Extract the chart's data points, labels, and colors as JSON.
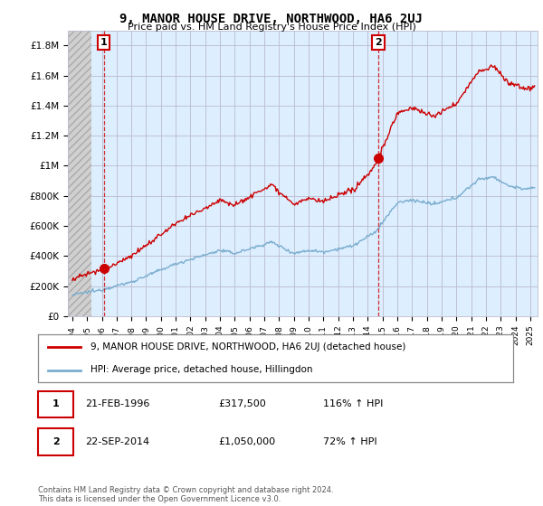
{
  "title": "9, MANOR HOUSE DRIVE, NORTHWOOD, HA6 2UJ",
  "subtitle": "Price paid vs. HM Land Registry's House Price Index (HPI)",
  "ylabel_ticks": [
    "£0",
    "£200K",
    "£400K",
    "£600K",
    "£800K",
    "£1M",
    "£1.2M",
    "£1.4M",
    "£1.6M",
    "£1.8M"
  ],
  "ytick_values": [
    0,
    200000,
    400000,
    600000,
    800000,
    1000000,
    1200000,
    1400000,
    1600000,
    1800000
  ],
  "ylim": [
    0,
    1900000
  ],
  "xlim_start": 1993.7,
  "xlim_end": 2025.5,
  "xticks": [
    1994,
    1995,
    1996,
    1997,
    1998,
    1999,
    2000,
    2001,
    2002,
    2003,
    2004,
    2005,
    2006,
    2007,
    2008,
    2009,
    2010,
    2011,
    2012,
    2013,
    2014,
    2015,
    2016,
    2017,
    2018,
    2019,
    2020,
    2021,
    2022,
    2023,
    2024,
    2025
  ],
  "sale1_x": 1996.13,
  "sale1_y": 317500,
  "sale1_label": "1",
  "sale2_x": 2014.72,
  "sale2_y": 1050000,
  "sale2_label": "2",
  "legend_line1": "9, MANOR HOUSE DRIVE, NORTHWOOD, HA6 2UJ (detached house)",
  "legend_line2": "HPI: Average price, detached house, Hillingdon",
  "annotation1_date": "21-FEB-1996",
  "annotation1_price": "£317,500",
  "annotation1_hpi": "116% ↑ HPI",
  "annotation2_date": "22-SEP-2014",
  "annotation2_price": "£1,050,000",
  "annotation2_hpi": "72% ↑ HPI",
  "footer": "Contains HM Land Registry data © Crown copyright and database right 2024.\nThis data is licensed under the Open Government Licence v3.0.",
  "color_red": "#cc0000",
  "color_blue": "#7aadce",
  "chart_bg": "#ddeeff",
  "hatch_bg": "#c8c8c8",
  "grid_color": "#bbbbcc"
}
